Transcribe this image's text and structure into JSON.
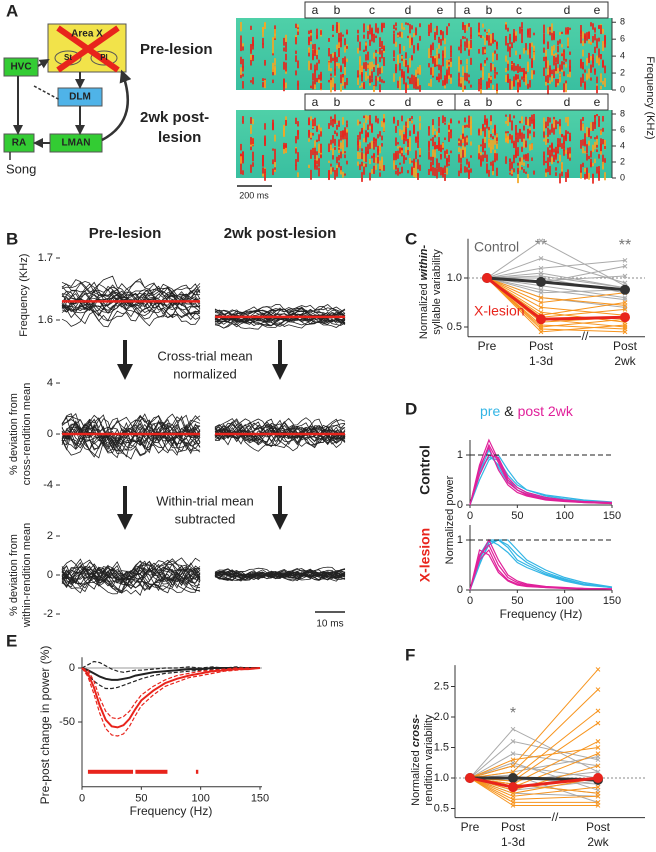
{
  "panel_a": {
    "label": "A",
    "diagram": {
      "hvc": "HVC",
      "area_x": "Area X",
      "st": "St",
      "pl": "Pl",
      "dlm": "DLM",
      "ra": "RA",
      "lman": "LMAN",
      "song": "Song"
    },
    "pre_label": "Pre-lesion",
    "post_label": [
      "2wk post-",
      "lesion"
    ],
    "syllables": [
      "a",
      "b",
      "c",
      "d",
      "e",
      "a",
      "b",
      "c",
      "d",
      "e"
    ],
    "frequency_axis": {
      "label": "Frequency (KHz)",
      "ylim": [
        0,
        8.5
      ],
      "yticks": [
        0,
        2,
        4,
        6,
        8
      ]
    },
    "scale_bar": "200 ms"
  },
  "panel_b": {
    "label": "B",
    "columns": [
      "Pre-lesion",
      "2wk post-lesion"
    ],
    "rows": [
      {
        "ylabel": [
          "Frequency (KHz)"
        ],
        "ylim": [
          1.56,
          1.72
        ],
        "yticks": [
          1.6,
          1.7
        ]
      },
      {
        "ylabel": [
          "% deviation from",
          "cross-rendition mean"
        ],
        "ylim": [
          -4.5,
          4.5
        ],
        "yticks": [
          -4,
          0,
          4
        ]
      },
      {
        "ylabel": [
          "% deviation from",
          "within-rendition mean"
        ],
        "ylim": [
          -2.5,
          2.5
        ],
        "yticks": [
          -2,
          0,
          2
        ]
      }
    ],
    "step_1": [
      "Cross-trial mean",
      "normalized"
    ],
    "step_2": [
      "Within-trial mean",
      "subtracted"
    ],
    "scale_bar": "10 ms"
  },
  "panel_c": {
    "label": "C",
    "ylabel": {
      "line1_pre": "Normalized ",
      "line1_em": "within-",
      "line2": "syllable variability"
    },
    "categories": [
      [
        "Pre"
      ],
      [
        "Post",
        "1-3d"
      ],
      [
        "Post",
        "2wk"
      ]
    ],
    "ylim": [
      0.4,
      1.4
    ],
    "yticks": [
      0.5,
      {
        "value": 1,
        "label": "1.0"
      }
    ],
    "reference_line": 1,
    "significance": [
      null,
      "**",
      "**"
    ],
    "groups": [
      {
        "name": "Control",
        "color": "#333333",
        "individual_color": "#aaaaaa",
        "mean": [
          1,
          0.96,
          0.88
        ],
        "individual": [
          [
            1,
            1.38,
            0.92
          ],
          [
            1,
            1.2,
            0.95
          ],
          [
            1,
            1.1,
            1.18
          ],
          [
            1,
            1.05,
            0.9
          ],
          [
            1,
            1.0,
            0.85
          ],
          [
            1,
            0.97,
            1.02
          ],
          [
            1,
            0.92,
            0.8
          ],
          [
            1,
            0.88,
            0.78
          ],
          [
            1,
            0.85,
            0.88
          ],
          [
            1,
            0.8,
            0.7
          ],
          [
            1,
            0.95,
            1.12
          ],
          [
            1,
            1.02,
            0.9
          ]
        ]
      },
      {
        "name": "X-lesion",
        "color": "#e8241c",
        "individual_color": "#f7941d",
        "mean": [
          1,
          0.58,
          0.6
        ],
        "individual": [
          [
            1,
            0.8,
            0.72
          ],
          [
            1,
            0.75,
            0.85
          ],
          [
            1,
            0.7,
            0.62
          ],
          [
            1,
            0.65,
            0.55
          ],
          [
            1,
            0.6,
            0.68
          ],
          [
            1,
            0.58,
            0.5
          ],
          [
            1,
            0.55,
            0.6
          ],
          [
            1,
            0.52,
            0.48
          ],
          [
            1,
            0.5,
            0.58
          ],
          [
            1,
            0.48,
            0.45
          ],
          [
            1,
            0.62,
            0.75
          ],
          [
            1,
            0.45,
            0.52
          ]
        ]
      }
    ]
  },
  "panel_d": {
    "label": "D",
    "legend": {
      "pre": "pre",
      "and": "&",
      "post": "post 2wk"
    },
    "pre_color": "#33b5e5",
    "post_color": "#e0209a",
    "ylabel": "Normalized power",
    "xlabel": "Frequency (Hz)",
    "xlim": [
      0,
      150
    ],
    "xticks": [
      0,
      50,
      100,
      150
    ],
    "ylim": [
      0,
      1.3
    ],
    "yticks": [
      0,
      1
    ],
    "reference_line": 1,
    "x": [
      0,
      10,
      20,
      30,
      40,
      50,
      60,
      80,
      100,
      120,
      150
    ],
    "subplots": [
      {
        "title": "Control",
        "title_color": "#222222",
        "pre": [
          [
            0,
            0.6,
            1.0,
            0.8,
            0.5,
            0.35,
            0.25,
            0.15,
            0.1,
            0.07,
            0.05
          ],
          [
            0,
            0.7,
            0.95,
            0.9,
            0.6,
            0.4,
            0.3,
            0.18,
            0.12,
            0.08,
            0.05
          ],
          [
            0,
            0.5,
            0.9,
            1.0,
            0.7,
            0.45,
            0.3,
            0.2,
            0.15,
            0.1,
            0.06
          ],
          [
            0,
            0.65,
            1.1,
            0.75,
            0.45,
            0.3,
            0.22,
            0.14,
            0.1,
            0.06,
            0.04
          ]
        ],
        "post": [
          [
            0,
            0.8,
            1.3,
            0.9,
            0.5,
            0.3,
            0.2,
            0.12,
            0.08,
            0.05,
            0.03
          ],
          [
            0,
            0.7,
            1.2,
            0.85,
            0.45,
            0.3,
            0.22,
            0.12,
            0.08,
            0.06,
            0.04
          ],
          [
            0,
            0.6,
            1.0,
            0.95,
            0.55,
            0.35,
            0.25,
            0.15,
            0.1,
            0.07,
            0.05
          ],
          [
            0,
            0.75,
            1.15,
            0.7,
            0.4,
            0.25,
            0.18,
            0.1,
            0.07,
            0.05,
            0.03
          ]
        ]
      },
      {
        "title": "X-lesion",
        "title_color": "#e8241c",
        "pre": [
          [
            0,
            0.6,
            1.0,
            1.0,
            0.9,
            0.7,
            0.55,
            0.35,
            0.22,
            0.12,
            0.05
          ],
          [
            0,
            0.5,
            0.95,
            1.0,
            1.0,
            0.8,
            0.6,
            0.4,
            0.25,
            0.15,
            0.06
          ],
          [
            0,
            0.7,
            1.0,
            0.9,
            0.75,
            0.55,
            0.45,
            0.3,
            0.18,
            0.1,
            0.05
          ],
          [
            0,
            0.55,
            0.9,
            1.0,
            0.85,
            0.6,
            0.5,
            0.32,
            0.2,
            0.12,
            0.05
          ]
        ],
        "post": [
          [
            0,
            0.7,
            0.9,
            0.5,
            0.25,
            0.15,
            0.1,
            0.06,
            0.04,
            0.03,
            0.02
          ],
          [
            0,
            0.6,
            0.8,
            0.4,
            0.2,
            0.12,
            0.08,
            0.05,
            0.04,
            0.03,
            0.02
          ],
          [
            0,
            0.8,
            0.7,
            0.35,
            0.18,
            0.1,
            0.07,
            0.05,
            0.03,
            0.02,
            0.02
          ],
          [
            0,
            0.65,
            1.0,
            0.6,
            0.3,
            0.18,
            0.12,
            0.07,
            0.05,
            0.03,
            0.02
          ]
        ]
      }
    ]
  },
  "panel_e": {
    "label": "E",
    "ylabel": "Pre-post change in power (%)",
    "xlabel": "Frequency (Hz)",
    "xlim": [
      0,
      150
    ],
    "xticks": [
      0,
      50,
      100,
      150
    ],
    "ylim": [
      -110,
      10
    ],
    "yticks": [
      0,
      -50
    ],
    "reference_line": 0,
    "x": [
      0,
      5,
      10,
      15,
      20,
      25,
      30,
      35,
      40,
      45,
      50,
      60,
      70,
      80,
      90,
      100,
      110,
      120,
      130,
      140,
      150
    ],
    "series": [
      {
        "color": "#222222",
        "mean": [
          0,
          -2,
          -5,
          -8,
          -10,
          -11,
          -11,
          -10,
          -9,
          -7,
          -6,
          -4,
          -3,
          -2,
          -1,
          -1,
          0,
          0,
          0,
          0,
          0
        ],
        "upper": [
          0,
          3,
          6,
          5,
          2,
          -1,
          -3,
          -4,
          -3,
          -2,
          -2,
          -1,
          0,
          0,
          1,
          0,
          1,
          0,
          1,
          0,
          0
        ],
        "lower": [
          0,
          -6,
          -12,
          -16,
          -19,
          -19,
          -18,
          -16,
          -14,
          -12,
          -10,
          -7,
          -5,
          -4,
          -3,
          -2,
          -1,
          -1,
          -1,
          0,
          0
        ]
      },
      {
        "color": "#e8241c",
        "mean": [
          0,
          -5,
          -18,
          -35,
          -48,
          -54,
          -55,
          -53,
          -47,
          -38,
          -30,
          -21,
          -14,
          -10,
          -7,
          -5,
          -3,
          -2,
          -1,
          -1,
          0
        ],
        "upper": [
          0,
          -2,
          -12,
          -28,
          -40,
          -46,
          -47,
          -45,
          -40,
          -32,
          -25,
          -17,
          -11,
          -7,
          -5,
          -3,
          -2,
          -1,
          0,
          0,
          0
        ],
        "lower": [
          0,
          -8,
          -24,
          -42,
          -56,
          -62,
          -63,
          -61,
          -54,
          -44,
          -35,
          -25,
          -17,
          -13,
          -9,
          -7,
          -5,
          -3,
          -2,
          -1,
          0
        ]
      }
    ],
    "significant_ranges": [
      [
        5,
        43
      ],
      [
        45,
        72
      ],
      [
        96,
        98
      ]
    ],
    "significant_color": "#e8241c"
  },
  "panel_f": {
    "label": "F",
    "ylabel": {
      "line1_pre": "Normalized ",
      "line1_em": "cross-",
      "line2": "rendition variability"
    },
    "categories": [
      [
        "Pre"
      ],
      [
        "Post",
        "1-3d"
      ],
      [
        "Post",
        "2wk"
      ]
    ],
    "ylim": [
      0.35,
      2.85
    ],
    "yticks": [
      0.5,
      {
        "value": 1,
        "label": "1.0"
      },
      1.5,
      {
        "value": 2,
        "label": "2.0"
      },
      2.5
    ],
    "reference_line": 1,
    "significance": [
      null,
      "*",
      null
    ],
    "groups": [
      {
        "color": "#333333",
        "individual_color": "#aaaaaa",
        "mean": [
          1,
          1.0,
          0.97
        ],
        "individual": [
          [
            1,
            1.8,
            1.1
          ],
          [
            1,
            1.6,
            1.3
          ],
          [
            1,
            1.4,
            1.2
          ],
          [
            1,
            1.25,
            0.8
          ],
          [
            1,
            1.1,
            1.35
          ],
          [
            1,
            1.0,
            0.9
          ],
          [
            1,
            0.95,
            1.1
          ],
          [
            1,
            0.9,
            0.75
          ],
          [
            1,
            0.8,
            0.95
          ],
          [
            1,
            0.75,
            0.7
          ],
          [
            1,
            1.2,
            1.0
          ],
          [
            1,
            1.05,
            0.6
          ]
        ]
      },
      {
        "color": "#e8241c",
        "individual_color": "#f7941d",
        "mean": [
          1,
          0.85,
          1.0
        ],
        "individual": [
          [
            1,
            1.2,
            2.78
          ],
          [
            1,
            1.1,
            2.45
          ],
          [
            1,
            1.0,
            2.1
          ],
          [
            1,
            0.95,
            1.9
          ],
          [
            1,
            0.9,
            1.6
          ],
          [
            1,
            0.85,
            1.4
          ],
          [
            1,
            0.8,
            1.2
          ],
          [
            1,
            0.75,
            1.0
          ],
          [
            1,
            0.7,
            0.85
          ],
          [
            1,
            0.65,
            0.7
          ],
          [
            1,
            0.6,
            0.6
          ],
          [
            1,
            0.55,
            0.55
          ],
          [
            1,
            1.3,
            1.5
          ],
          [
            1,
            0.9,
            0.75
          ]
        ]
      }
    ]
  }
}
